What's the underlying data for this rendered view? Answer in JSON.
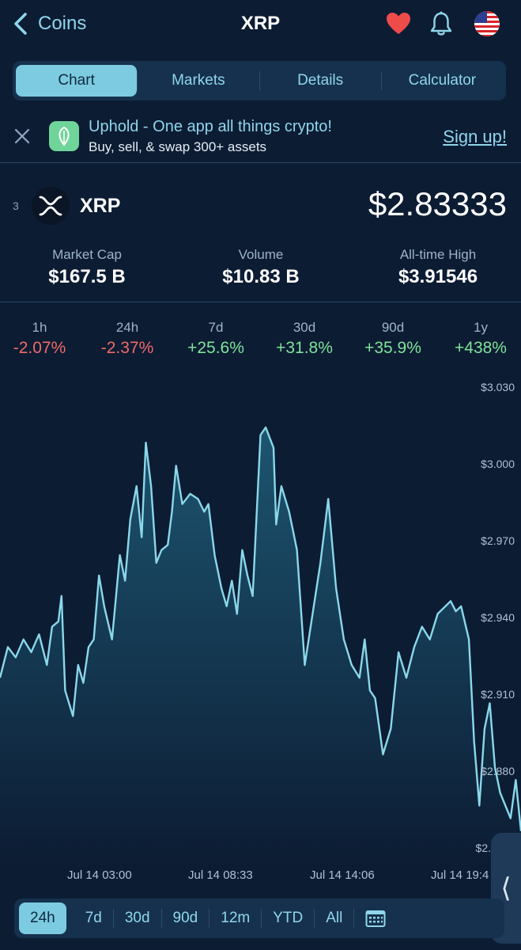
{
  "header": {
    "back_label": "Coins",
    "title": "XRP",
    "icons": [
      "heart-icon",
      "bell-icon",
      "us-flag-icon"
    ]
  },
  "tabs": [
    {
      "label": "Chart",
      "active": true
    },
    {
      "label": "Markets",
      "active": false
    },
    {
      "label": "Details",
      "active": false
    },
    {
      "label": "Calculator",
      "active": false
    }
  ],
  "ad": {
    "title": "Uphold - One app all things crypto!",
    "subtitle": "Buy, sell, & swap 300+ assets",
    "cta": "Sign up!"
  },
  "coin": {
    "rank": "3",
    "name": "XRP",
    "price": "$2.83333"
  },
  "stats": [
    {
      "label": "Market Cap",
      "value": "$167.5 B"
    },
    {
      "label": "Volume",
      "value": "$10.83 B"
    },
    {
      "label": "All-time High",
      "value": "$3.91546"
    }
  ],
  "changes": [
    {
      "label": "1h",
      "value": "-2.07%",
      "sign": "neg"
    },
    {
      "label": "24h",
      "value": "-2.37%",
      "sign": "neg"
    },
    {
      "label": "7d",
      "value": "+25.6%",
      "sign": "pos"
    },
    {
      "label": "30d",
      "value": "+31.8%",
      "sign": "pos"
    },
    {
      "label": "90d",
      "value": "+35.9%",
      "sign": "pos"
    },
    {
      "label": "1y",
      "value": "+438%",
      "sign": "pos"
    }
  ],
  "chart": {
    "y_labels": [
      "$3.030",
      "$3.000",
      "$2.970",
      "$2.940",
      "$2.910",
      "$2.880",
      "$2."
    ],
    "x_labels": [
      "Jul 14 03:00",
      "Jul 14 08:33",
      "Jul 14 14:06",
      "Jul 14 19:4"
    ],
    "colors": {
      "line": "#8ad8ea",
      "fill_top": "#1d5570",
      "fill_bottom": "#0c1c33"
    }
  },
  "chart_data": {
    "type": "area",
    "ylabel": "",
    "xlabel": "",
    "ylim": [
      2.85,
      3.035
    ],
    "y_ticks": [
      3.03,
      3.0,
      2.97,
      2.94,
      2.91,
      2.88
    ],
    "x_tick_labels": [
      "Jul 14 03:00",
      "Jul 14 08:33",
      "Jul 14 14:06",
      "Jul 14 19:4"
    ],
    "x_ticks": [
      0.19,
      0.43,
      0.67,
      0.905
    ],
    "x": [
      0.0,
      0.015,
      0.03,
      0.045,
      0.06,
      0.075,
      0.09,
      0.1,
      0.112,
      0.118,
      0.125,
      0.14,
      0.15,
      0.16,
      0.17,
      0.18,
      0.19,
      0.2,
      0.215,
      0.23,
      0.24,
      0.25,
      0.262,
      0.272,
      0.28,
      0.29,
      0.3,
      0.31,
      0.322,
      0.33,
      0.338,
      0.35,
      0.365,
      0.38,
      0.392,
      0.4,
      0.412,
      0.425,
      0.435,
      0.445,
      0.455,
      0.465,
      0.475,
      0.485,
      0.5,
      0.51,
      0.525,
      0.53,
      0.54,
      0.555,
      0.57,
      0.585,
      0.6,
      0.615,
      0.63,
      0.645,
      0.66,
      0.675,
      0.69,
      0.7,
      0.71,
      0.72,
      0.735,
      0.75,
      0.765,
      0.78,
      0.795,
      0.81,
      0.825,
      0.84,
      0.855,
      0.865,
      0.875,
      0.885,
      0.9,
      0.91,
      0.92,
      0.93,
      0.94,
      0.95,
      0.96,
      0.97,
      0.98,
      0.99,
      1.0
    ],
    "y": [
      2.92,
      2.932,
      2.928,
      2.935,
      2.93,
      2.937,
      2.925,
      2.94,
      2.942,
      2.952,
      2.915,
      2.905,
      2.925,
      2.918,
      2.932,
      2.935,
      2.96,
      2.948,
      2.935,
      2.968,
      2.958,
      2.982,
      2.995,
      2.975,
      3.012,
      2.995,
      2.965,
      2.97,
      2.972,
      2.985,
      3.003,
      2.988,
      2.992,
      2.99,
      2.985,
      2.988,
      2.968,
      2.955,
      2.948,
      2.958,
      2.945,
      2.97,
      2.96,
      2.952,
      3.015,
      3.018,
      3.01,
      2.98,
      2.995,
      2.985,
      2.97,
      2.925,
      2.945,
      2.965,
      2.99,
      2.955,
      2.935,
      2.925,
      2.92,
      2.935,
      2.915,
      2.912,
      2.89,
      2.9,
      2.93,
      2.92,
      2.932,
      2.94,
      2.935,
      2.945,
      2.948,
      2.95,
      2.946,
      2.948,
      2.935,
      2.895,
      2.87,
      2.9,
      2.91,
      2.885,
      2.875,
      2.87,
      2.865,
      2.88,
      2.86
    ],
    "grid": false,
    "legend": "none"
  },
  "ranges": [
    {
      "label": "24h",
      "active": true
    },
    {
      "label": "7d",
      "active": false
    },
    {
      "label": "30d",
      "active": false
    },
    {
      "label": "90d",
      "active": false
    },
    {
      "label": "12m",
      "active": false
    },
    {
      "label": "YTD",
      "active": false
    },
    {
      "label": "All",
      "active": false
    }
  ],
  "calendar_icon": "calendar-icon",
  "collapse_icon": "chevron-left-icon"
}
